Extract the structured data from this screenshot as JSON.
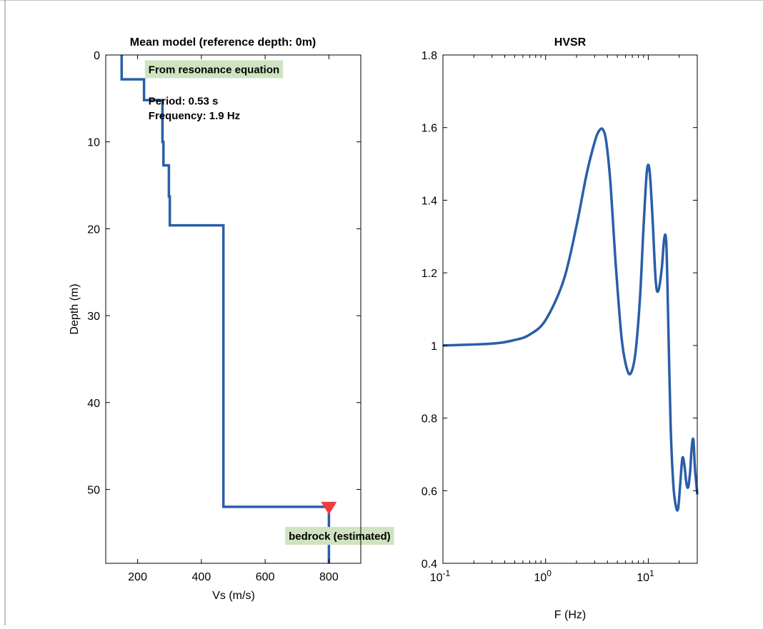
{
  "window": {
    "title": ""
  },
  "colors": {
    "line": "#2a5ea8",
    "marker": "#f03c3c",
    "annotation_bg": "#cfe3c0"
  },
  "chart_data": [
    {
      "type": "line",
      "title": "Mean model (reference depth: 0m)",
      "xlabel": "Vs (m/s)",
      "ylabel": "Depth (m)",
      "xlim": [
        100,
        900
      ],
      "ylim": [
        58.5,
        0
      ],
      "y_reversed": true,
      "xticks": [
        200,
        400,
        600,
        800
      ],
      "xtick_labels": [
        "200",
        "400",
        "600",
        "800"
      ],
      "yticks": [
        0,
        10,
        20,
        30,
        40,
        50
      ],
      "ytick_labels": [
        "0",
        "10",
        "20",
        "30",
        "40",
        "50"
      ],
      "grid": false,
      "series": [
        {
          "x": [
            150,
            150,
            220,
            220,
            278,
            278,
            281,
            281,
            298,
            298,
            301,
            301,
            303,
            303,
            469,
            469,
            800,
            800
          ],
          "y": [
            0,
            2.8,
            2.8,
            5.2,
            5.2,
            10.0,
            10.0,
            12.7,
            12.7,
            16.3,
            16.3,
            19.6,
            19.6,
            19.6,
            19.6,
            52.0,
            52.0,
            58.5
          ]
        }
      ],
      "marker": {
        "x": 800,
        "y": 52,
        "shape": "triangle-down"
      },
      "annotations": [
        {
          "text": "From resonance equation",
          "x": 225,
          "y": 1.6,
          "boxed": true
        },
        {
          "text": "Period: 0.53 s",
          "x": 225,
          "y": 5.2,
          "boxed": false
        },
        {
          "text": "Frequency: 1.9 Hz",
          "x": 225,
          "y": 6.9,
          "boxed": false
        },
        {
          "text": "bedrock (estimated)",
          "x": 665,
          "y": 55.3,
          "boxed": true
        }
      ]
    },
    {
      "type": "line",
      "title": "HVSR",
      "xlabel": "F (Hz)",
      "ylabel": "",
      "x_scale": "log",
      "xlim": [
        0.1,
        30
      ],
      "ylim": [
        0.4,
        1.8
      ],
      "xticks": [
        0.1,
        1,
        10
      ],
      "xtick_labels": [
        "10-1",
        "100",
        "101"
      ],
      "yticks": [
        0.4,
        0.6,
        0.8,
        1.0,
        1.2,
        1.4,
        1.6,
        1.8
      ],
      "ytick_labels": [
        "0.4",
        "0.6",
        "0.8",
        "1",
        "1.2",
        "1.4",
        "1.6",
        "1.8"
      ],
      "grid": false,
      "series": [
        {
          "x": [
            0.1,
            0.3,
            0.5,
            0.7,
            1.0,
            1.5,
            2.0,
            2.5,
            3.0,
            3.3,
            3.6,
            3.9,
            4.3,
            4.8,
            5.5,
            6.2,
            6.8,
            7.5,
            8.3,
            9.0,
            9.7,
            10.3,
            11.0,
            11.8,
            12.5,
            13.5,
            14.3,
            15.0,
            15.6,
            16.5,
            17.5,
            18.5,
            19.5,
            20.5,
            21.5,
            22.5,
            23.5,
            24.5,
            25.5,
            26.5,
            27.5,
            28.5,
            30.0
          ],
          "y": [
            1.0,
            1.005,
            1.015,
            1.03,
            1.07,
            1.18,
            1.33,
            1.47,
            1.56,
            1.59,
            1.595,
            1.56,
            1.44,
            1.23,
            1.02,
            0.935,
            0.925,
            0.98,
            1.13,
            1.33,
            1.48,
            1.48,
            1.35,
            1.18,
            1.15,
            1.21,
            1.295,
            1.28,
            1.08,
            0.78,
            0.62,
            0.56,
            0.55,
            0.62,
            0.69,
            0.67,
            0.62,
            0.61,
            0.65,
            0.72,
            0.74,
            0.66,
            0.59
          ]
        }
      ]
    }
  ]
}
